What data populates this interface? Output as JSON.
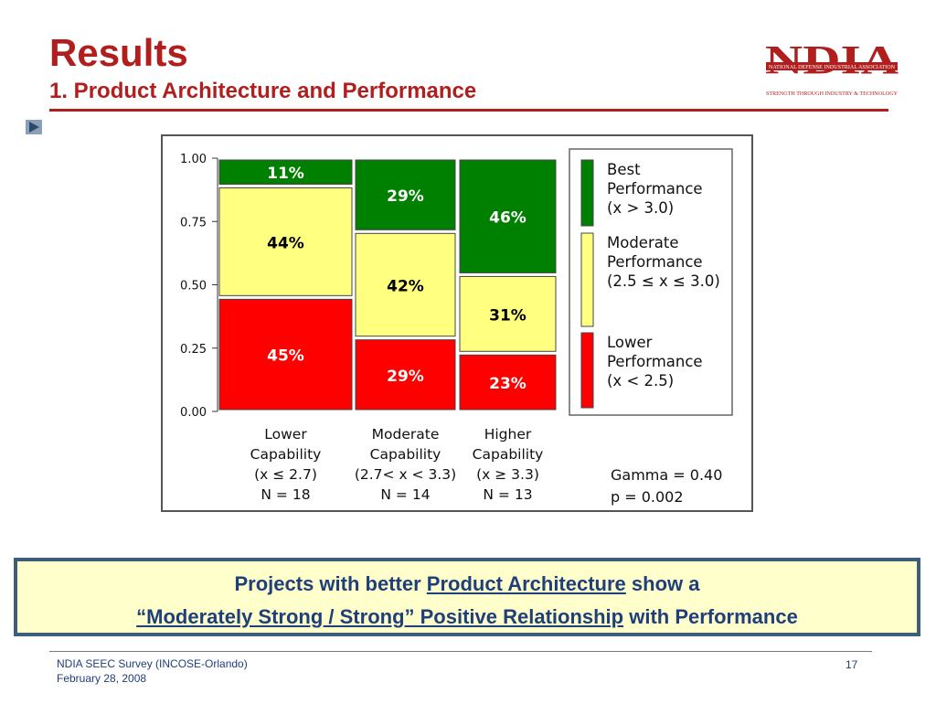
{
  "header": {
    "title": "Results",
    "subtitle": "1. Product Architecture and Performance"
  },
  "logo": {
    "letters": "NDIA",
    "line1": "NATIONAL DEFENSE INDUSTRIAL ASSOCIATION",
    "line2": "STRENGTH THROUGH INDUSTRY & TECHNOLOGY",
    "color": "#b01e1e"
  },
  "colors": {
    "best": "#008000",
    "moderate": "#ffff80",
    "lower": "#ff0000",
    "accent": "#b01e1e",
    "callout_text": "#1f3f7a"
  },
  "chart_data": {
    "type": "bar",
    "subtype": "stacked-100-mosaic",
    "y_ticks": [
      "1.00",
      "0.75",
      "0.50",
      "0.25",
      "0.00"
    ],
    "ylim": [
      0,
      1
    ],
    "categories": [
      {
        "lines": [
          "Lower",
          "Capability",
          "(x ≤ 2.7)",
          "N = 18"
        ],
        "n": 18
      },
      {
        "lines": [
          "Moderate",
          "Capability",
          "(2.7< x < 3.3)",
          "N = 14"
        ],
        "n": 14
      },
      {
        "lines": [
          "Higher",
          "Capability",
          "(x ≥ 3.3)",
          "N = 13"
        ],
        "n": 13
      }
    ],
    "series": [
      {
        "key": "lower",
        "values": [
          0.45,
          0.29,
          0.23
        ],
        "labels": [
          "45%",
          "29%",
          "23%"
        ]
      },
      {
        "key": "moderate",
        "values": [
          0.44,
          0.42,
          0.31
        ],
        "labels": [
          "44%",
          "42%",
          "31%"
        ]
      },
      {
        "key": "best",
        "values": [
          0.11,
          0.29,
          0.46
        ],
        "labels": [
          "11%",
          "29%",
          "46%"
        ]
      }
    ],
    "legend": [
      {
        "key": "best",
        "lines": [
          "Best",
          "Performance",
          "(x > 3.0)"
        ]
      },
      {
        "key": "moderate",
        "lines": [
          "Moderate",
          "Performance",
          "(2.5 ≤ x ≤ 3.0)"
        ]
      },
      {
        "key": "lower",
        "lines": [
          "Lower",
          "Performance",
          "(x < 2.5)"
        ]
      }
    ],
    "legend_position": "right",
    "stats": {
      "gamma": "Gamma = 0.40",
      "p": "p = 0.002"
    }
  },
  "callout": {
    "l1_pre": "Projects with better ",
    "l1_link": "Product Architecture",
    "l1_post": " show a",
    "l2_link": "“Moderately Strong / Strong” Positive Relationship",
    "l2_post": " with  Performance"
  },
  "footer": {
    "line1": "NDIA SEEC Survey (INCOSE-Orlando)",
    "line2": "February 28, 2008",
    "page": "17"
  }
}
